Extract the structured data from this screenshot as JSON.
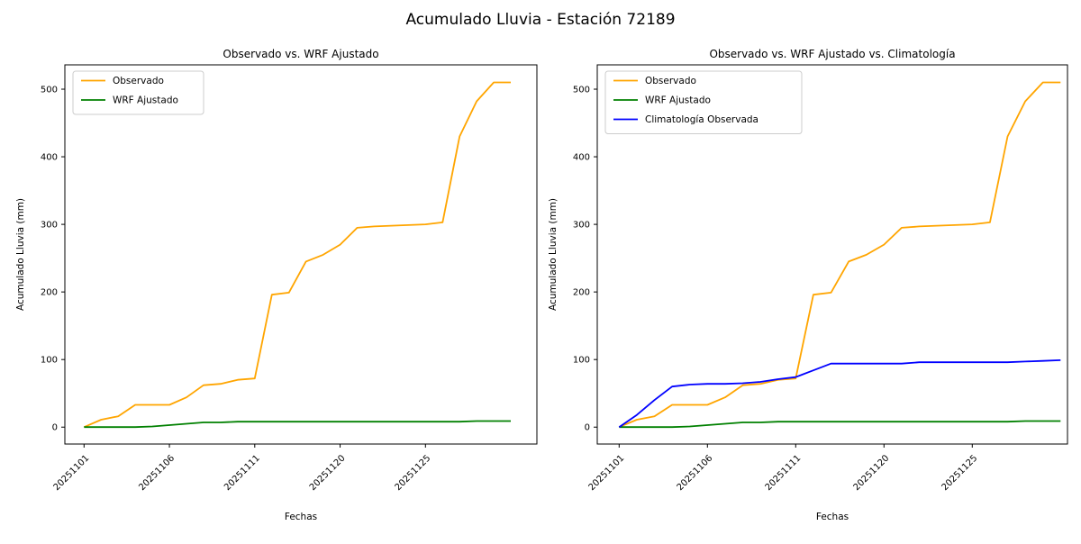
{
  "figure": {
    "suptitle": "Acumulado Lluvia - Estación 72189",
    "background": "#ffffff",
    "text_color": "#000000"
  },
  "chart_data": [
    {
      "type": "line",
      "title": "Observado vs. WRF Ajustado",
      "xlabel": "Fechas",
      "ylabel": "Acumulado Lluvia (mm)",
      "grid": false,
      "legend_position": "upper-left",
      "ylim": [
        -25,
        536
      ],
      "y_ticks": [
        0,
        100,
        200,
        300,
        400,
        500
      ],
      "x_index_count": 26,
      "x_ticks": [
        {
          "index": 0,
          "label": "20251101"
        },
        {
          "index": 5,
          "label": "20251106"
        },
        {
          "index": 10,
          "label": "20251111"
        },
        {
          "index": 15,
          "label": "20251120"
        },
        {
          "index": 20,
          "label": "20251125"
        }
      ],
      "series": [
        {
          "name": "Observado",
          "color": "#FFA500",
          "values": [
            0,
            11,
            16,
            33,
            33,
            33,
            44,
            62,
            64,
            70,
            72,
            196,
            199,
            245,
            255,
            270,
            295,
            297,
            298,
            299,
            300,
            303,
            430,
            482,
            510,
            510
          ]
        },
        {
          "name": "WRF Ajustado",
          "color": "#008000",
          "values": [
            0,
            0,
            0,
            0,
            1,
            3,
            5,
            7,
            7,
            8,
            8,
            8,
            8,
            8,
            8,
            8,
            8,
            8,
            8,
            8,
            8,
            8,
            8,
            9,
            9,
            9
          ]
        }
      ]
    },
    {
      "type": "line",
      "title": "Observado vs. WRF Ajustado vs. Climatología",
      "xlabel": "Fechas",
      "ylabel": "Acumulado Lluvia (mm)",
      "grid": false,
      "legend_position": "upper-left",
      "ylim": [
        -25,
        536
      ],
      "y_ticks": [
        0,
        100,
        200,
        300,
        400,
        500
      ],
      "x_index_count": 26,
      "x_ticks": [
        {
          "index": 0,
          "label": "20251101"
        },
        {
          "index": 5,
          "label": "20251106"
        },
        {
          "index": 10,
          "label": "20251111"
        },
        {
          "index": 15,
          "label": "20251120"
        },
        {
          "index": 20,
          "label": "20251125"
        }
      ],
      "series": [
        {
          "name": "Observado",
          "color": "#FFA500",
          "values": [
            0,
            11,
            16,
            33,
            33,
            33,
            44,
            62,
            64,
            70,
            72,
            196,
            199,
            245,
            255,
            270,
            295,
            297,
            298,
            299,
            300,
            303,
            430,
            482,
            510,
            510
          ]
        },
        {
          "name": "WRF Ajustado",
          "color": "#008000",
          "values": [
            0,
            0,
            0,
            0,
            1,
            3,
            5,
            7,
            7,
            8,
            8,
            8,
            8,
            8,
            8,
            8,
            8,
            8,
            8,
            8,
            8,
            8,
            8,
            9,
            9,
            9
          ]
        },
        {
          "name": "Climatología Observada",
          "color": "#0000FF",
          "values": [
            0,
            18,
            40,
            60,
            63,
            64,
            64,
            65,
            67,
            71,
            74,
            84,
            94,
            94,
            94,
            94,
            94,
            96,
            96,
            96,
            96,
            96,
            96,
            97,
            98,
            99
          ]
        }
      ]
    }
  ]
}
